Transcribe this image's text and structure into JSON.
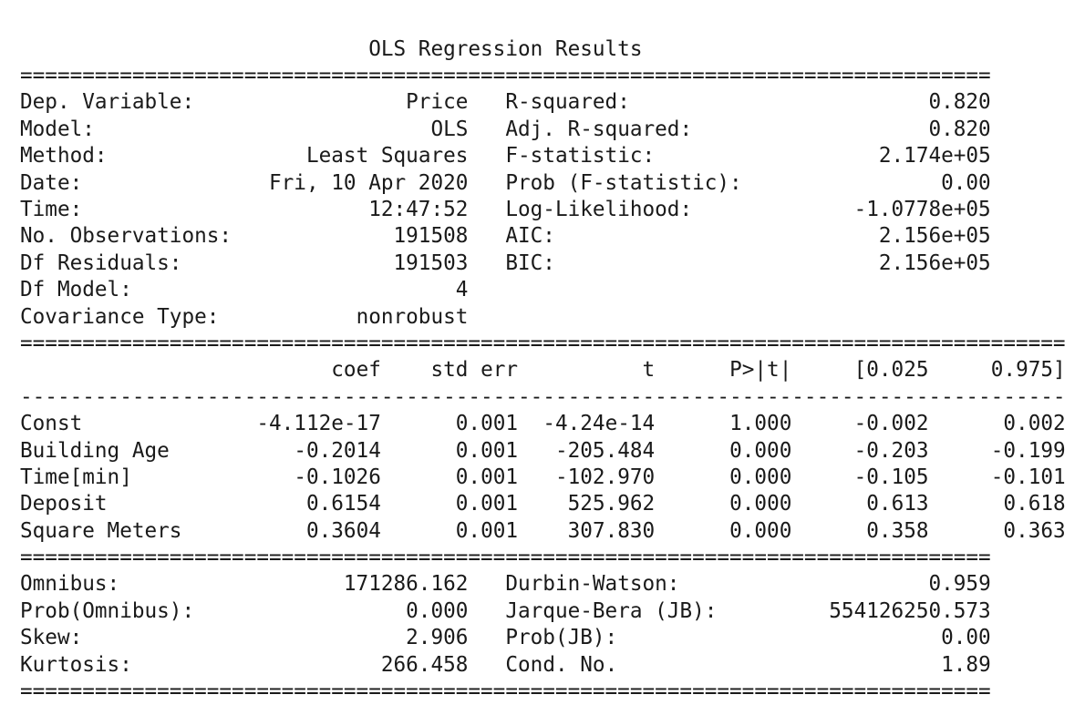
{
  "title": "OLS Regression Results",
  "top_left": [
    {
      "label": "Dep. Variable:",
      "value": "Price"
    },
    {
      "label": "Model:",
      "value": "OLS"
    },
    {
      "label": "Method:",
      "value": "Least Squares"
    },
    {
      "label": "Date:",
      "value": "Fri, 10 Apr 2020"
    },
    {
      "label": "Time:",
      "value": "12:47:52"
    },
    {
      "label": "No. Observations:",
      "value": "191508"
    },
    {
      "label": "Df Residuals:",
      "value": "191503"
    },
    {
      "label": "Df Model:",
      "value": "4"
    },
    {
      "label": "Covariance Type:",
      "value": "nonrobust"
    }
  ],
  "top_right": [
    {
      "label": "R-squared:",
      "value": "0.820"
    },
    {
      "label": "Adj. R-squared:",
      "value": "0.820"
    },
    {
      "label": "F-statistic:",
      "value": "2.174e+05"
    },
    {
      "label": "Prob (F-statistic):",
      "value": "0.00"
    },
    {
      "label": "Log-Likelihood:",
      "value": "-1.0778e+05"
    },
    {
      "label": "AIC:",
      "value": "2.156e+05"
    },
    {
      "label": "BIC:",
      "value": "2.156e+05"
    }
  ],
  "coef_table": {
    "headers": [
      "coef",
      "std err",
      "t",
      "P>|t|",
      "[0.025",
      "0.975]"
    ],
    "rows": [
      {
        "name": "Const",
        "values": [
          "-4.112e-17",
          "0.001",
          "-4.24e-14",
          "1.000",
          "-0.002",
          "0.002"
        ]
      },
      {
        "name": "Building Age",
        "values": [
          "-0.2014",
          "0.001",
          "-205.484",
          "0.000",
          "-0.203",
          "-0.199"
        ]
      },
      {
        "name": "Time[min]",
        "values": [
          "-0.1026",
          "0.001",
          "-102.970",
          "0.000",
          "-0.105",
          "-0.101"
        ]
      },
      {
        "name": "Deposit",
        "values": [
          "0.6154",
          "0.001",
          "525.962",
          "0.000",
          "0.613",
          "0.618"
        ]
      },
      {
        "name": "Square Meters",
        "values": [
          "0.3604",
          "0.001",
          "307.830",
          "0.000",
          "0.358",
          "0.363"
        ]
      }
    ]
  },
  "bottom_left": [
    {
      "label": "Omnibus:",
      "value": "171286.162"
    },
    {
      "label": "Prob(Omnibus):",
      "value": "0.000"
    },
    {
      "label": "Skew:",
      "value": "2.906"
    },
    {
      "label": "Kurtosis:",
      "value": "266.458"
    }
  ],
  "bottom_right": [
    {
      "label": "Durbin-Watson:",
      "value": "0.959"
    },
    {
      "label": "Jarque-Bera (JB):",
      "value": "554126250.573"
    },
    {
      "label": "Prob(JB):",
      "value": "0.00"
    },
    {
      "label": "Cond. No.",
      "value": "1.89"
    }
  ]
}
